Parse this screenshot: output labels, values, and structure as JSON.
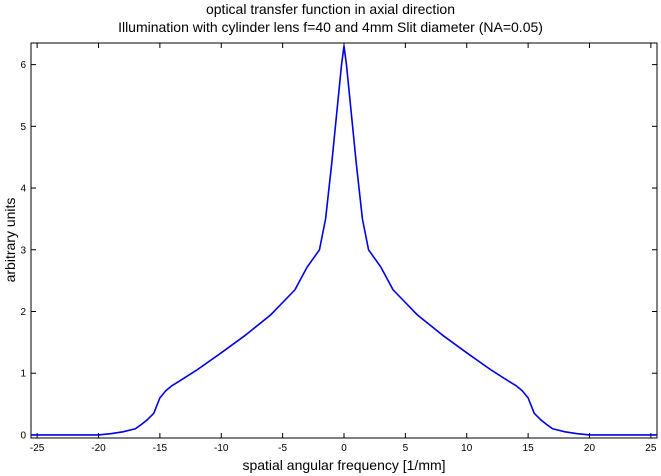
{
  "chart_data": {
    "type": "line",
    "title": [
      "optical transfer function in axial direction",
      "Illumination with cylinder lens f=40 and 4mm Slit diameter (NA=0.05)"
    ],
    "xlabel": "spatial angular frequency [1/mm]",
    "ylabel": "arbitrary units",
    "xlim": [
      -25.5,
      25.5
    ],
    "ylim": [
      -0.05,
      6.35
    ],
    "xticks": [
      -25,
      -20,
      -15,
      -10,
      -5,
      0,
      5,
      10,
      15,
      20,
      25
    ],
    "xtick_labels": [
      "-25",
      "-20",
      "-15",
      "-10",
      "-5",
      "0",
      "5",
      "10",
      "15",
      "20",
      "25"
    ],
    "yticks": [
      0,
      1,
      2,
      3,
      4,
      5,
      6
    ],
    "ytick_labels": [
      "0",
      "1",
      "2",
      "3",
      "4",
      "5",
      "6"
    ],
    "grid": false,
    "line_color": "#0000e6",
    "series": [
      {
        "x": [
          -25.5,
          -20,
          -19,
          -18,
          -17,
          -16.5,
          -16,
          -15.5,
          -15,
          -14.5,
          -14,
          -13.5,
          -12,
          -10,
          -8,
          -6,
          -4,
          -3,
          -2,
          -1.5,
          -1,
          -0.7,
          -0.4,
          -0.2,
          0,
          0.2,
          0.4,
          0.7,
          1,
          1.5,
          2,
          3,
          4,
          6,
          8,
          10,
          12,
          13.5,
          14,
          14.5,
          15,
          15.5,
          16,
          16.5,
          17,
          18,
          19,
          20,
          25.5
        ],
        "y": [
          0,
          0,
          0.02,
          0.05,
          0.1,
          0.17,
          0.25,
          0.35,
          0.6,
          0.72,
          0.8,
          0.86,
          1.05,
          1.33,
          1.62,
          1.94,
          2.35,
          2.72,
          3.0,
          3.5,
          4.4,
          5.0,
          5.6,
          6.0,
          6.3,
          6.0,
          5.6,
          5.0,
          4.4,
          3.5,
          3.0,
          2.72,
          2.35,
          1.94,
          1.62,
          1.33,
          1.05,
          0.86,
          0.8,
          0.72,
          0.6,
          0.35,
          0.25,
          0.17,
          0.1,
          0.05,
          0.02,
          0,
          0
        ]
      }
    ]
  }
}
